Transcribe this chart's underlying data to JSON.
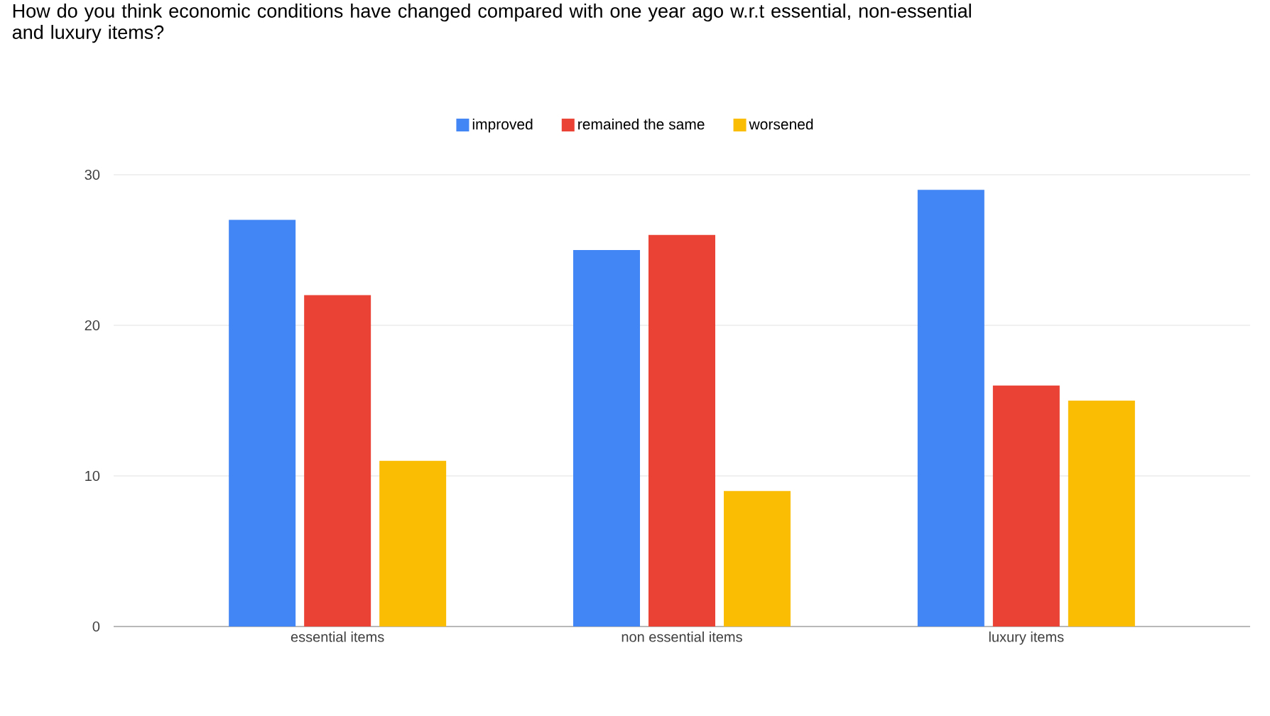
{
  "chart_data": {
    "type": "bar",
    "title": "How do you think economic conditions have changed compared with one year ago w.r.t essential, non-essential and luxury items?",
    "categories": [
      "essential items",
      "non essential items",
      "luxury items"
    ],
    "series": [
      {
        "name": "improved",
        "color": "#4285f4",
        "values": [
          27,
          25,
          29
        ]
      },
      {
        "name": "remained the same",
        "color": "#ea4335",
        "values": [
          22,
          26,
          16
        ]
      },
      {
        "name": "worsened",
        "color": "#fbbc04",
        "values": [
          11,
          9,
          15
        ]
      }
    ],
    "ylim": [
      0,
      30
    ],
    "yticks": [
      0,
      10,
      20,
      30
    ],
    "grid": "y",
    "legend": "top"
  }
}
